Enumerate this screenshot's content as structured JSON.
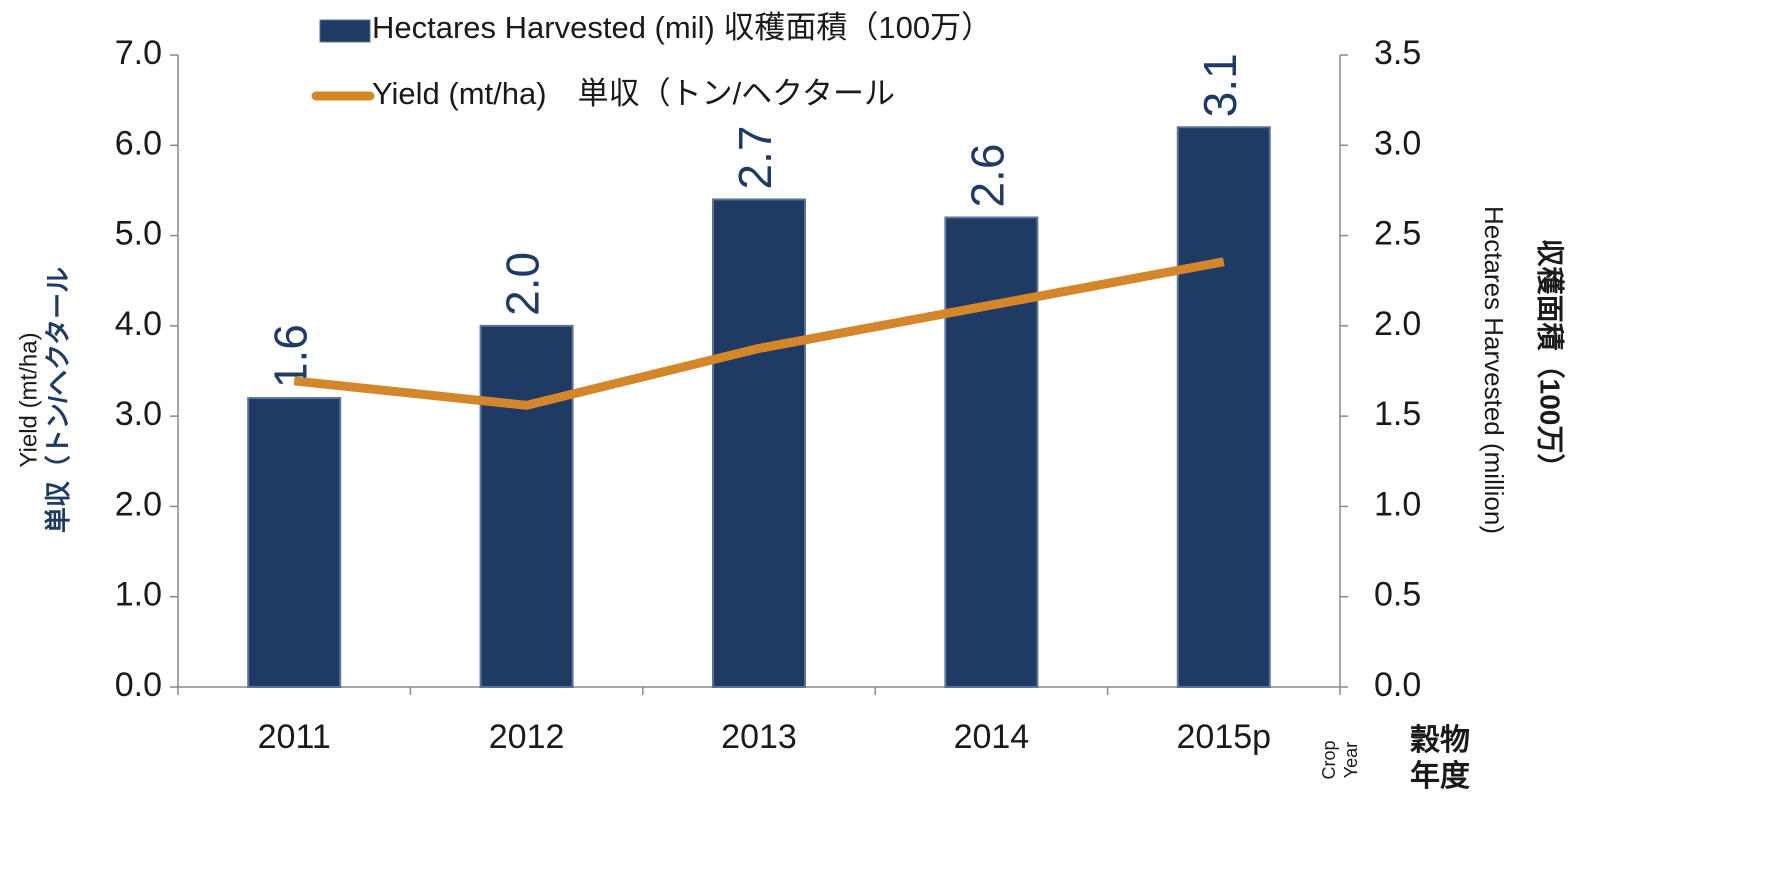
{
  "chart_data": {
    "type": "combo",
    "categories": [
      "2011",
      "2012",
      "2013",
      "2014",
      "2015p"
    ],
    "series": [
      {
        "name": "Hectares Harvested (mil) 収穫面積（100万）",
        "type": "bar",
        "axis": "y2",
        "color": "#1f3a63",
        "values": [
          1.6,
          2.0,
          2.7,
          2.6,
          3.1
        ],
        "value_labels": [
          "1.6",
          "2.0",
          "2.7",
          "2.6",
          "3.1"
        ]
      },
      {
        "name": "Yield (mt/ha)　単収（トン/ヘクタール",
        "type": "line",
        "axis": "y",
        "color": "#d4862a",
        "values": [
          3.39,
          3.12,
          3.75,
          4.23,
          4.71
        ]
      }
    ],
    "ylim": [
      0,
      7
    ],
    "yticks": [
      {
        "value": 0,
        "label": "0.0"
      },
      {
        "value": 1,
        "label": "1.0"
      },
      {
        "value": 2,
        "label": "2.0"
      },
      {
        "value": 3,
        "label": "3.0"
      },
      {
        "value": 4,
        "label": "4.0"
      },
      {
        "value": 5,
        "label": "5.0"
      },
      {
        "value": 6,
        "label": "6.0"
      },
      {
        "value": 7,
        "label": "7.0"
      }
    ],
    "y2lim": [
      0,
      3.5
    ],
    "y2ticks": [
      {
        "value": 0,
        "label": "0.0"
      },
      0.5,
      {
        "value": 1,
        "label": "1.0"
      },
      1.5,
      {
        "value": 2,
        "label": "2.0"
      },
      2.5,
      {
        "value": 3,
        "label": "3.0"
      },
      3.5
    ],
    "y_label": [
      "Yield (mt/ha)",
      "単収（トン/ヘクタール"
    ],
    "y2_label": [
      "Hectares Harvested (million)",
      "収穫面積（100万）"
    ],
    "x_label": [
      "Crop",
      "Year"
    ],
    "x_label_ja": [
      "穀物",
      "年度"
    ]
  }
}
